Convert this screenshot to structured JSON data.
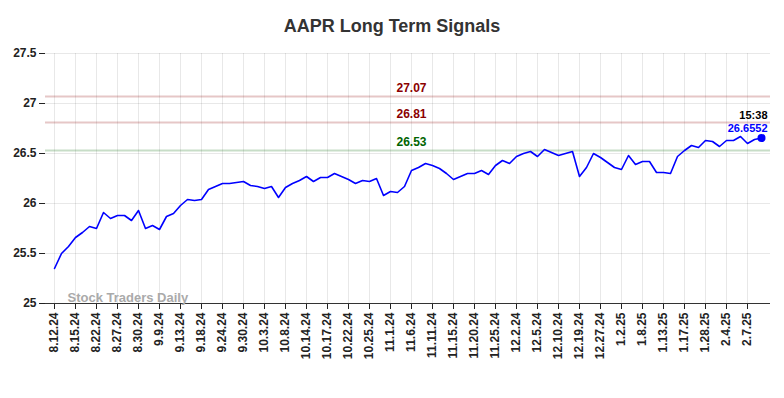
{
  "chart_data": {
    "type": "line",
    "title": "AAPR Long Term Signals",
    "color": "#0000ff",
    "grid": true,
    "ylim": [
      25,
      27.5
    ],
    "yticks": [
      25,
      25.5,
      26,
      26.5,
      27,
      27.5
    ],
    "categories": [
      "8.12.24",
      null,
      null,
      "8.15.24",
      null,
      null,
      "8.22.24",
      null,
      null,
      "8.27.24",
      null,
      null,
      "8.30.24",
      null,
      null,
      "9.9.24",
      null,
      null,
      "9.13.24",
      null,
      null,
      "9.18.24",
      null,
      null,
      "9.24.24",
      null,
      null,
      "9.30.24",
      null,
      null,
      "10.3.24",
      null,
      null,
      "10.8.24",
      null,
      null,
      "10.14.24",
      null,
      null,
      "10.17.24",
      null,
      null,
      "10.22.24",
      null,
      null,
      "10.25.24",
      null,
      null,
      "11.1.24",
      null,
      null,
      "11.6.24",
      null,
      null,
      "11.11.24",
      null,
      null,
      "11.15.24",
      null,
      null,
      "11.20.24",
      null,
      null,
      "11.25.24",
      null,
      null,
      "12.2.24",
      null,
      null,
      "12.5.24",
      null,
      null,
      "12.10.24",
      null,
      null,
      "12.19.24",
      null,
      null,
      "12.27.24",
      null,
      null,
      "1.2.25",
      null,
      null,
      "1.8.25",
      null,
      null,
      "1.13.25",
      null,
      null,
      "1.17.25",
      null,
      null,
      "1.28.25",
      null,
      null,
      "2.4.25",
      null,
      null,
      "2.7.25",
      null,
      null
    ],
    "values": [
      25.35,
      25.5,
      25.57,
      25.66,
      25.71,
      25.77,
      25.75,
      25.91,
      25.85,
      25.88,
      25.88,
      25.83,
      25.93,
      25.75,
      25.78,
      25.74,
      25.87,
      25.9,
      25.98,
      26.04,
      26.03,
      26.04,
      26.14,
      26.17,
      26.2,
      26.2,
      26.21,
      26.22,
      26.18,
      26.17,
      26.15,
      26.17,
      26.06,
      26.16,
      26.2,
      26.23,
      26.27,
      26.22,
      26.26,
      26.26,
      26.3,
      26.27,
      26.24,
      26.2,
      26.23,
      26.22,
      26.25,
      26.08,
      26.12,
      26.11,
      26.17,
      26.33,
      26.36,
      26.4,
      26.38,
      26.35,
      26.3,
      26.24,
      26.27,
      26.3,
      26.3,
      26.33,
      26.29,
      26.38,
      26.43,
      26.4,
      26.47,
      26.5,
      26.52,
      26.47,
      26.54,
      26.51,
      26.48,
      26.5,
      26.52,
      26.27,
      26.36,
      26.5,
      26.46,
      26.41,
      26.36,
      26.34,
      26.48,
      26.39,
      26.42,
      26.42,
      26.31,
      26.31,
      26.3,
      26.47,
      26.53,
      26.58,
      26.56,
      26.63,
      26.62,
      26.57,
      26.63,
      26.63,
      26.67,
      26.6,
      26.64,
      26.6552
    ],
    "annotations": [
      {
        "value": 27.07,
        "label": "27.07",
        "color": "#8b0000"
      },
      {
        "value": 26.81,
        "label": "26.81",
        "color": "#8b0000"
      },
      {
        "value": 26.53,
        "label": "26.53",
        "color": "#006400"
      }
    ],
    "last_point": {
      "time": "15:38",
      "value": 26.6552
    },
    "watermark": "Stock Traders Daily"
  }
}
